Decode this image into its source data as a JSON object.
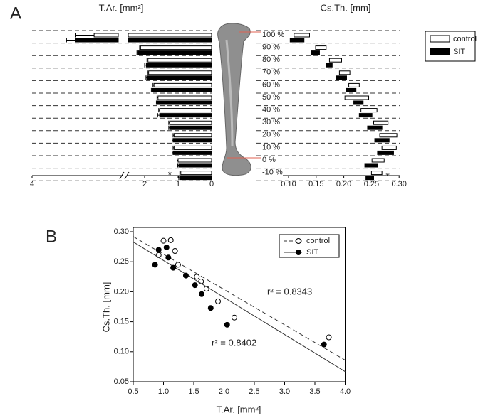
{
  "chart_data": [
    {
      "type": "bar",
      "panel": "A",
      "xlabel": "T.Ar. [mm²]",
      "categories": [
        "100 %",
        "90 %",
        "80 %",
        "70 %",
        "60 %",
        "50 %",
        "40 %",
        "30 %",
        "20 %",
        "10 %",
        "0 %",
        "-10 %"
      ],
      "series": [
        {
          "color": "#ffffff",
          "values": [
            3.64,
            2.12,
            1.9,
            1.88,
            1.72,
            1.6,
            1.55,
            1.25,
            1.12,
            1.12,
            1.0,
            0.92
          ],
          "errors": [
            0.11,
            0.03,
            0.03,
            0.03,
            0.03,
            0.03,
            0.03,
            0.03,
            0.03,
            0.03,
            0.03,
            0.03
          ]
        },
        {
          "color": "#000000",
          "values": [
            3.75,
            2.2,
            1.95,
            1.93,
            1.77,
            1.62,
            1.55,
            1.25,
            1.15,
            1.15,
            0.98,
            0.95
          ],
          "errors": [
            0.05,
            0.03,
            0.05,
            0.03,
            0.03,
            0.03,
            0.06,
            0.03,
            0.03,
            0.03,
            0.03,
            0.03
          ]
        }
      ],
      "xlim": [
        4,
        0
      ],
      "xticks": [
        4,
        2,
        1,
        0
      ],
      "xbreak": [
        2.5,
        3.5
      ],
      "grid": true,
      "annotations": [
        {
          "text": "*",
          "category": "-10 %"
        }
      ]
    },
    {
      "type": "box",
      "xlabel": "Cs.Th. [mm]",
      "series": [
        {
          "name": "control",
          "color": "#ffffff",
          "low": [
            0.11,
            0.149,
            0.174,
            0.192,
            0.209,
            0.202,
            0.231,
            0.254,
            0.265,
            0.269,
            0.251,
            0.25
          ],
          "high": [
            0.138,
            0.168,
            0.196,
            0.211,
            0.228,
            0.245,
            0.26,
            0.28,
            0.296,
            0.295,
            0.273,
            0.269
          ]
        },
        {
          "name": "SIT",
          "color": "#000000",
          "low": [
            0.103,
            0.141,
            0.168,
            0.187,
            0.204,
            0.218,
            0.228,
            0.243,
            0.256,
            0.261,
            0.238,
            0.24
          ],
          "high": [
            0.128,
            0.156,
            0.179,
            0.205,
            0.222,
            0.235,
            0.251,
            0.269,
            0.282,
            0.29,
            0.261,
            0.254
          ]
        }
      ],
      "xlim": [
        0.1,
        0.3
      ],
      "xticks": [
        {
          "value": 0.1,
          "label": "0.10"
        },
        0.15,
        {
          "value": 0.2,
          "label": "0.20"
        },
        0.25,
        {
          "value": 0.3,
          "label": "0.30"
        }
      ],
      "legend": "top-right",
      "annotations": [
        {
          "text": "*",
          "category": "-10 %"
        }
      ]
    },
    {
      "type": "scatter",
      "panel": "B",
      "xlabel": "T.Ar. [mm²]",
      "ylabel": "Cs.Th. [mm]",
      "series": [
        {
          "name": "control",
          "color": "#ffffff",
          "dash": true,
          "x": [
            1.0,
            1.12,
            0.92,
            1.19,
            1.24,
            1.55,
            1.62,
            1.71,
            1.9,
            2.17,
            3.73
          ],
          "values": [
            0.285,
            0.286,
            0.261,
            0.268,
            0.245,
            0.225,
            0.217,
            0.205,
            0.184,
            0.157,
            0.124
          ],
          "fit_x": [
            0.5,
            4.0
          ],
          "fit_values": [
            0.292,
            0.086
          ],
          "r2": "r² = 0.8343"
        },
        {
          "name": "SIT",
          "color": "#000000",
          "dash": false,
          "x": [
            0.92,
            1.05,
            0.86,
            1.08,
            1.16,
            1.37,
            1.52,
            1.63,
            1.78,
            2.05,
            3.65
          ],
          "values": [
            0.27,
            0.274,
            0.245,
            0.257,
            0.24,
            0.227,
            0.211,
            0.196,
            0.173,
            0.145,
            0.112
          ],
          "fit_x": [
            0.5,
            4.0
          ],
          "fit_values": [
            0.283,
            0.067
          ],
          "r2": "r² = 0.8402"
        }
      ],
      "xlim": [
        0.5,
        4.0
      ],
      "xticks": [
        0.5,
        {
          "value": 1.0,
          "label": "1.0"
        },
        1.5,
        {
          "value": 2.0,
          "label": "2.0"
        },
        2.5,
        {
          "value": 3.0,
          "label": "3.0"
        },
        3.5,
        {
          "value": 4.0,
          "label": "4.0"
        }
      ],
      "ylim": [
        0.05,
        0.3
      ],
      "yticks": [
        0.05,
        {
          "value": 0.1,
          "label": "0.10"
        },
        0.15,
        {
          "value": 0.2,
          "label": "0.20"
        },
        0.25,
        {
          "value": 0.3,
          "label": "0.30"
        }
      ],
      "legend": "top-right"
    }
  ]
}
